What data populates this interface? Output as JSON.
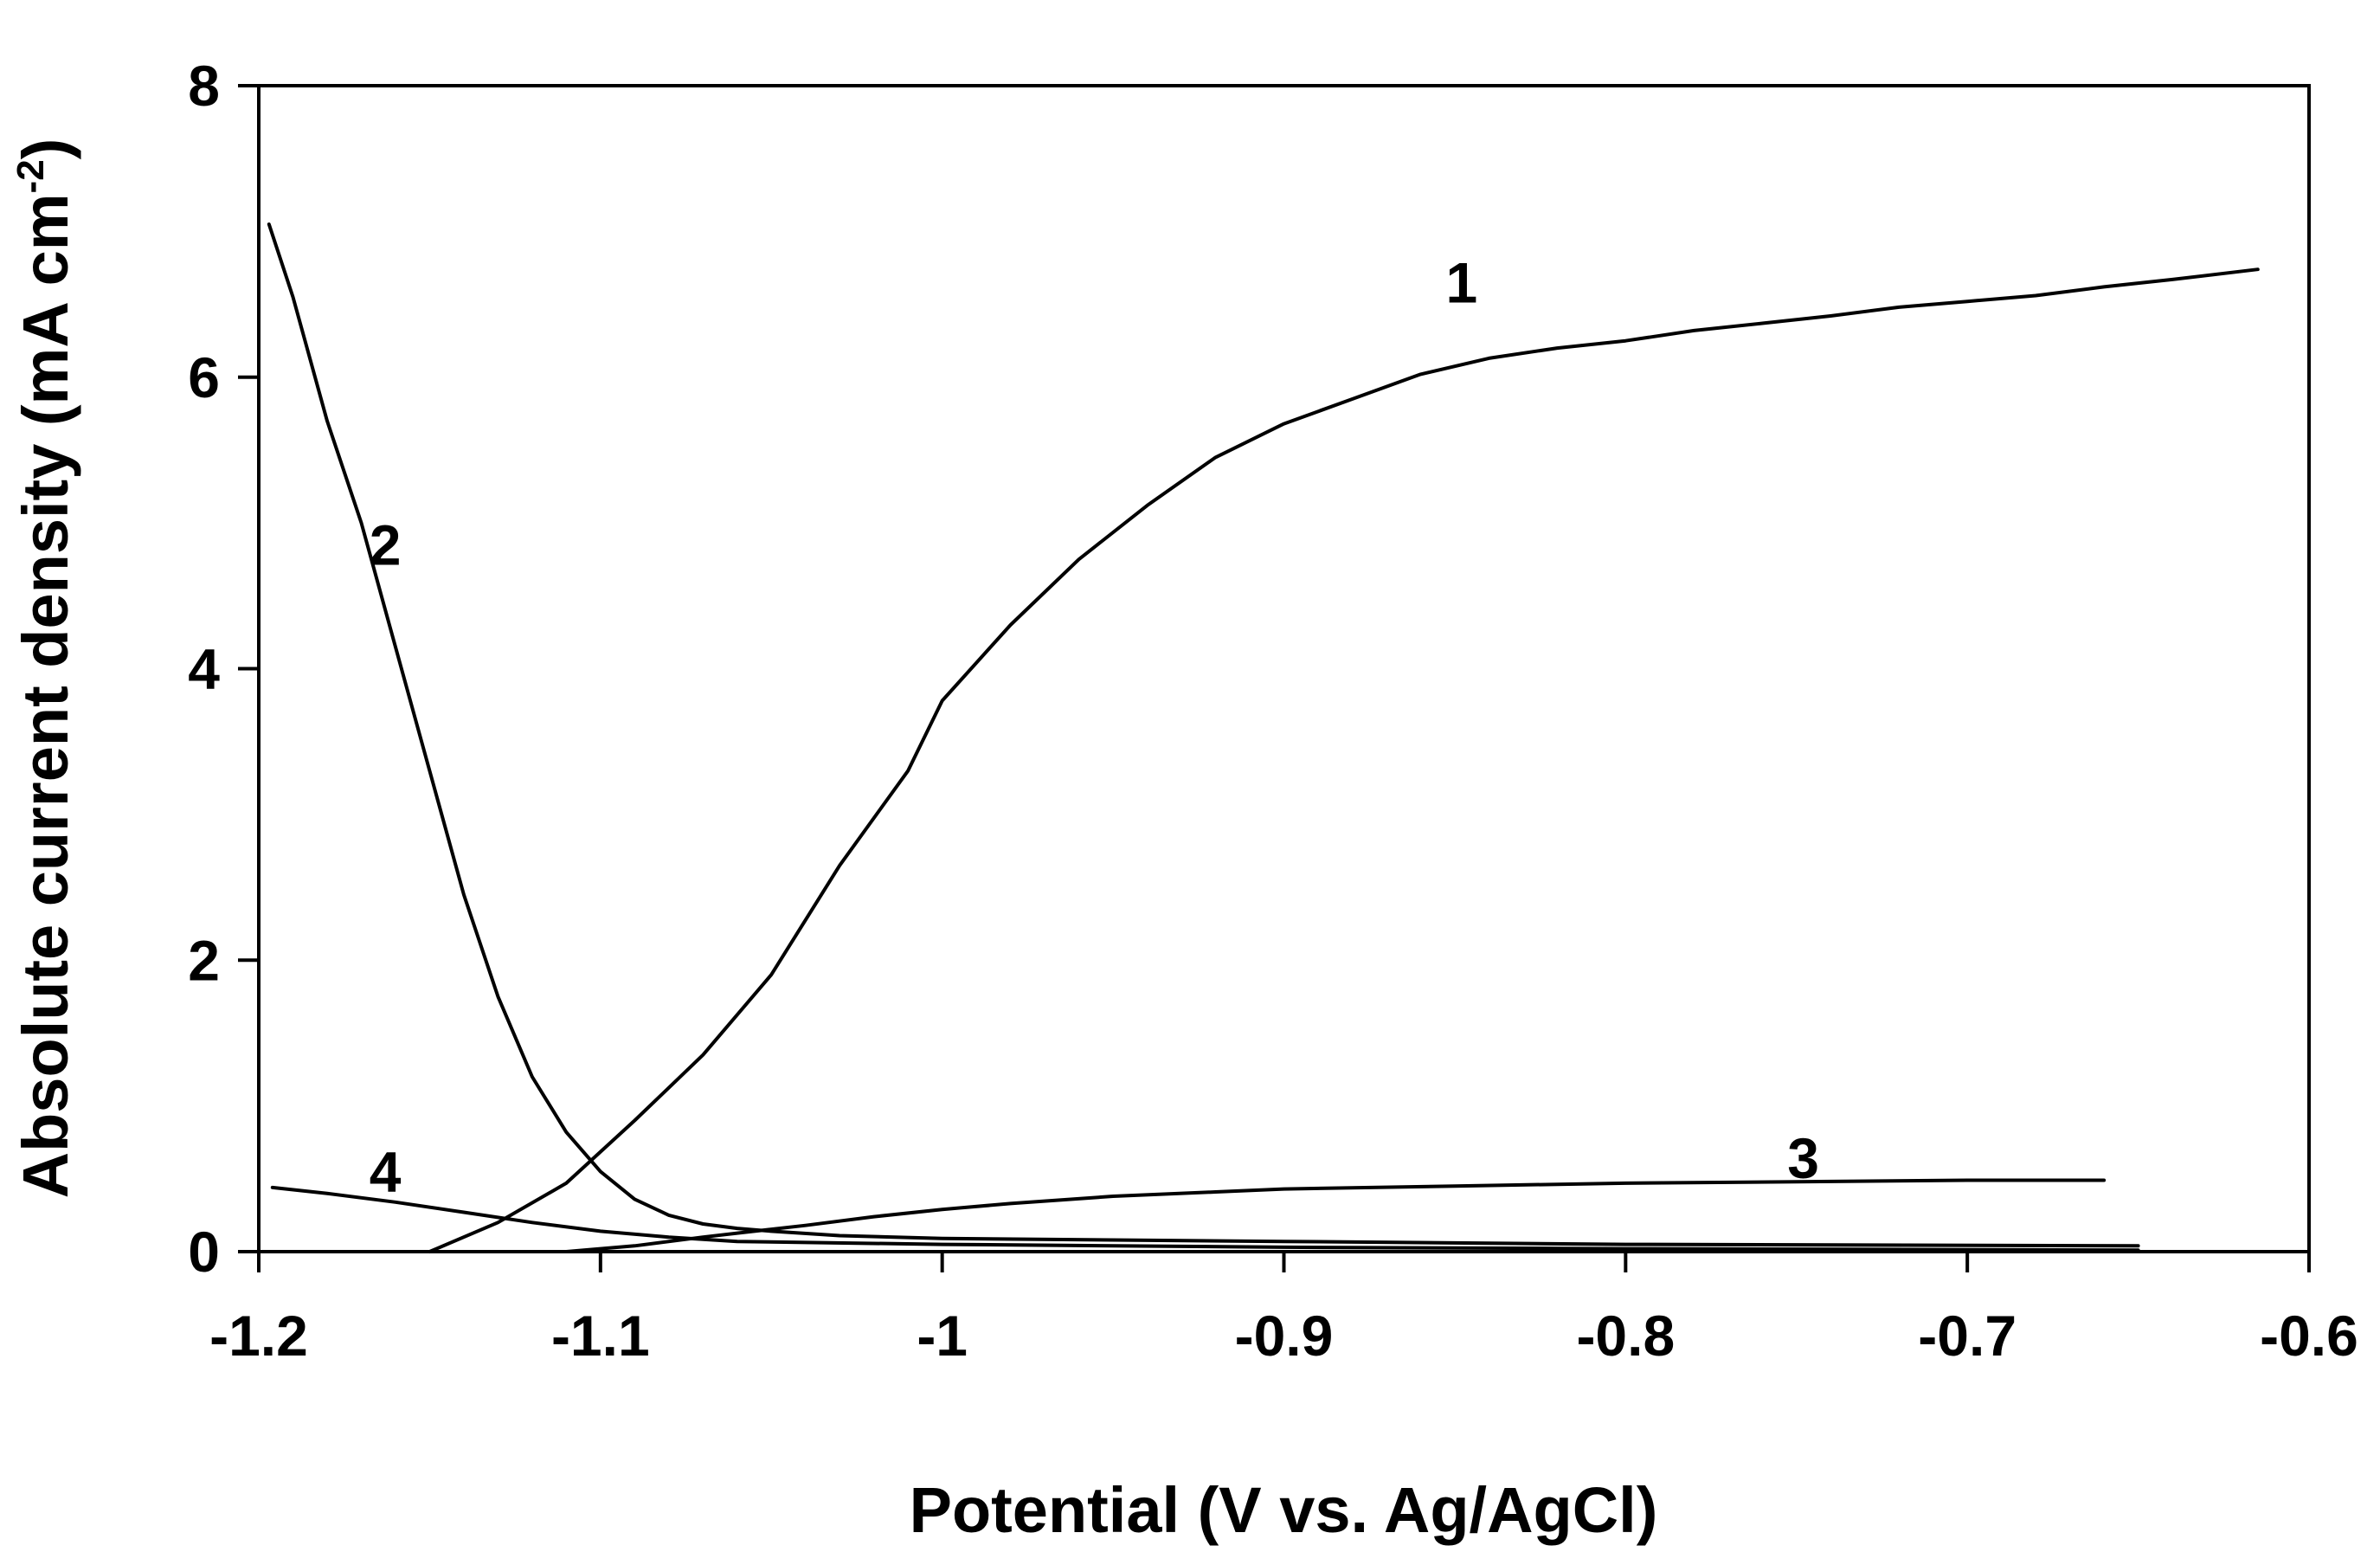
{
  "chart_data": {
    "type": "line",
    "title": "",
    "xlabel": "Potential (V vs. Ag/AgCl)",
    "ylabel_main": "Absolute current density (mA cm",
    "ylabel_sup": "-2",
    "ylabel_close": ")",
    "xlim": [
      -1.2,
      -0.6
    ],
    "ylim": [
      0,
      8
    ],
    "xticks": [
      -1.2,
      -1.1,
      -1.0,
      -0.9,
      -0.8,
      -0.7,
      -0.6
    ],
    "xtick_labels": [
      "-1.2",
      "-1.1",
      "-1",
      "-0.9",
      "-0.8",
      "-0.7",
      "-0.6"
    ],
    "yticks": [
      0,
      2,
      4,
      6,
      8
    ],
    "ytick_labels": [
      "0",
      "2",
      "4",
      "6",
      "8"
    ],
    "grid": false,
    "series": [
      {
        "name": "1",
        "label_at": [
          -0.848,
          6.65
        ],
        "points": [
          [
            -1.15,
            0.0
          ],
          [
            -1.13,
            0.2
          ],
          [
            -1.11,
            0.47
          ],
          [
            -1.09,
            0.9
          ],
          [
            -1.07,
            1.35
          ],
          [
            -1.05,
            1.9
          ],
          [
            -1.03,
            2.65
          ],
          [
            -1.01,
            3.3
          ],
          [
            -1.0,
            3.78
          ],
          [
            -0.98,
            4.3
          ],
          [
            -0.96,
            4.75
          ],
          [
            -0.94,
            5.12
          ],
          [
            -0.92,
            5.45
          ],
          [
            -0.9,
            5.68
          ],
          [
            -0.88,
            5.85
          ],
          [
            -0.86,
            6.02
          ],
          [
            -0.84,
            6.13
          ],
          [
            -0.82,
            6.2
          ],
          [
            -0.8,
            6.25
          ],
          [
            -0.78,
            6.32
          ],
          [
            -0.76,
            6.37
          ],
          [
            -0.74,
            6.42
          ],
          [
            -0.72,
            6.48
          ],
          [
            -0.7,
            6.52
          ],
          [
            -0.68,
            6.56
          ],
          [
            -0.66,
            6.62
          ],
          [
            -0.64,
            6.67
          ],
          [
            -0.615,
            6.74
          ]
        ]
      },
      {
        "name": "2",
        "label_at": [
          -1.163,
          4.85
        ],
        "points": [
          [
            -1.197,
            7.05
          ],
          [
            -1.19,
            6.55
          ],
          [
            -1.18,
            5.7
          ],
          [
            -1.17,
            5.0
          ],
          [
            -1.16,
            4.15
          ],
          [
            -1.15,
            3.3
          ],
          [
            -1.14,
            2.45
          ],
          [
            -1.13,
            1.75
          ],
          [
            -1.12,
            1.2
          ],
          [
            -1.11,
            0.82
          ],
          [
            -1.1,
            0.55
          ],
          [
            -1.09,
            0.36
          ],
          [
            -1.08,
            0.25
          ],
          [
            -1.07,
            0.19
          ],
          [
            -1.06,
            0.16
          ],
          [
            -1.05,
            0.14
          ],
          [
            -1.03,
            0.11
          ],
          [
            -1.0,
            0.09
          ],
          [
            -0.9,
            0.07
          ],
          [
            -0.8,
            0.05
          ],
          [
            -0.65,
            0.04
          ]
        ]
      },
      {
        "name": "3",
        "label_at": [
          -0.748,
          0.64
        ],
        "points": [
          [
            -1.11,
            0.0
          ],
          [
            -1.09,
            0.04
          ],
          [
            -1.07,
            0.1
          ],
          [
            -1.055,
            0.14
          ],
          [
            -1.04,
            0.18
          ],
          [
            -1.02,
            0.24
          ],
          [
            -1.0,
            0.29
          ],
          [
            -0.98,
            0.33
          ],
          [
            -0.95,
            0.38
          ],
          [
            -0.92,
            0.41
          ],
          [
            -0.9,
            0.43
          ],
          [
            -0.85,
            0.45
          ],
          [
            -0.8,
            0.47
          ],
          [
            -0.75,
            0.48
          ],
          [
            -0.7,
            0.49
          ],
          [
            -0.66,
            0.49
          ]
        ]
      },
      {
        "name": "4",
        "label_at": [
          -1.163,
          0.55
        ],
        "points": [
          [
            -1.196,
            0.44
          ],
          [
            -1.18,
            0.4
          ],
          [
            -1.16,
            0.34
          ],
          [
            -1.14,
            0.27
          ],
          [
            -1.12,
            0.2
          ],
          [
            -1.1,
            0.14
          ],
          [
            -1.08,
            0.1
          ],
          [
            -1.06,
            0.07
          ],
          [
            -1.0,
            0.05
          ],
          [
            -0.9,
            0.03
          ],
          [
            -0.8,
            0.02
          ],
          [
            -0.65,
            0.01
          ]
        ]
      }
    ]
  }
}
